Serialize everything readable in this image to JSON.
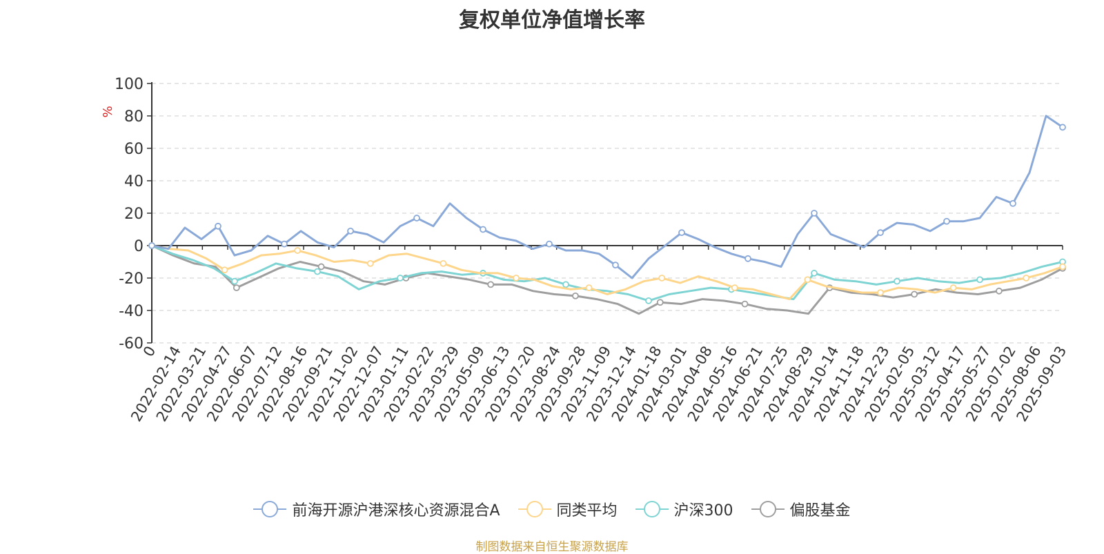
{
  "chart_data": {
    "type": "line",
    "title": "复权单位净值增长率",
    "ylabel": "%",
    "ylim": [
      -60,
      100
    ],
    "yticks": [
      "100",
      "80",
      "60",
      "40",
      "20",
      "0",
      "-20",
      "-40",
      "-60"
    ],
    "x_tick_labels": [
      "0",
      "2022-02-14",
      "2022-03-21",
      "2022-04-27",
      "2022-06-07",
      "2022-07-12",
      "2022-08-16",
      "2022-09-21",
      "2022-11-02",
      "2022-12-07",
      "2023-01-11",
      "2023-02-22",
      "2023-03-29",
      "2023-05-09",
      "2023-06-13",
      "2023-07-20",
      "2023-08-24",
      "2023-09-28",
      "2023-11-09",
      "2023-12-14",
      "2024-01-18",
      "2024-03-01",
      "2024-04-08",
      "2024-05-16",
      "2024-06-21",
      "2024-07-25",
      "2024-08-29",
      "2024-10-14",
      "2024-11-18",
      "2024-12-23",
      "2025-02-05",
      "2025-03-12",
      "2025-04-17",
      "2025-05-27",
      "2025-07-02",
      "2025-08-06",
      "2025-09-03"
    ],
    "grid": true,
    "legend_position": "bottom-center",
    "series": [
      {
        "name": "前海开源沪港深核心资源混合A",
        "color": "#8aa9d8",
        "values": [
          0,
          -2,
          11,
          4,
          12,
          -6,
          -3,
          6,
          1,
          9,
          2,
          -1,
          9,
          7,
          2,
          12,
          17,
          12,
          26,
          17,
          10,
          5,
          3,
          -2,
          1,
          -3,
          -3,
          -5,
          -12,
          -20,
          -8,
          0,
          8,
          4,
          -1,
          -5,
          -8,
          -10,
          -13,
          7,
          20,
          7,
          3,
          -1,
          8,
          14,
          13,
          9,
          15,
          15,
          17,
          30,
          26,
          45,
          80,
          73
        ]
      },
      {
        "name": "同类平均",
        "color": "#fdd58b",
        "values": [
          0,
          -2,
          -3,
          -8,
          -15,
          -11,
          -6,
          -5,
          -3,
          -6,
          -10,
          -9,
          -11,
          -6,
          -5,
          -8,
          -11,
          -15,
          -17,
          -17,
          -20,
          -21,
          -25,
          -27,
          -26,
          -30,
          -27,
          -22,
          -20,
          -23,
          -19,
          -22,
          -26,
          -27,
          -30,
          -33,
          -21,
          -25,
          -27,
          -29,
          -29,
          -26,
          -27,
          -29,
          -26,
          -27,
          -24,
          -22,
          -20,
          -17,
          -13
        ]
      },
      {
        "name": "沪深300",
        "color": "#7ed3d3",
        "values": [
          0,
          -5,
          -9,
          -14,
          -22,
          -17,
          -11,
          -14,
          -16,
          -19,
          -27,
          -22,
          -20,
          -17,
          -16,
          -18,
          -17,
          -21,
          -22,
          -20,
          -24,
          -27,
          -28,
          -30,
          -34,
          -30,
          -28,
          -26,
          -27,
          -29,
          -31,
          -33,
          -17,
          -21,
          -22,
          -24,
          -22,
          -20,
          -22,
          -23,
          -21,
          -20,
          -17,
          -13,
          -10
        ]
      },
      {
        "name": "偏股基金",
        "color": "#9e9e9e",
        "values": [
          0,
          -6,
          -11,
          -13,
          -26,
          -20,
          -14,
          -10,
          -13,
          -16,
          -22,
          -24,
          -20,
          -17,
          -19,
          -21,
          -24,
          -24,
          -28,
          -30,
          -31,
          -33,
          -36,
          -42,
          -35,
          -36,
          -33,
          -34,
          -36,
          -39,
          -40,
          -42,
          -26,
          -29,
          -30,
          -32,
          -30,
          -27,
          -29,
          -30,
          -28,
          -26,
          -21,
          -14
        ]
      }
    ]
  },
  "legend": {
    "items": [
      "前海开源沪港深核心资源混合A",
      "同类平均",
      "沪深300",
      "偏股基金"
    ]
  },
  "source_note": "制图数据来自恒生聚源数据库"
}
